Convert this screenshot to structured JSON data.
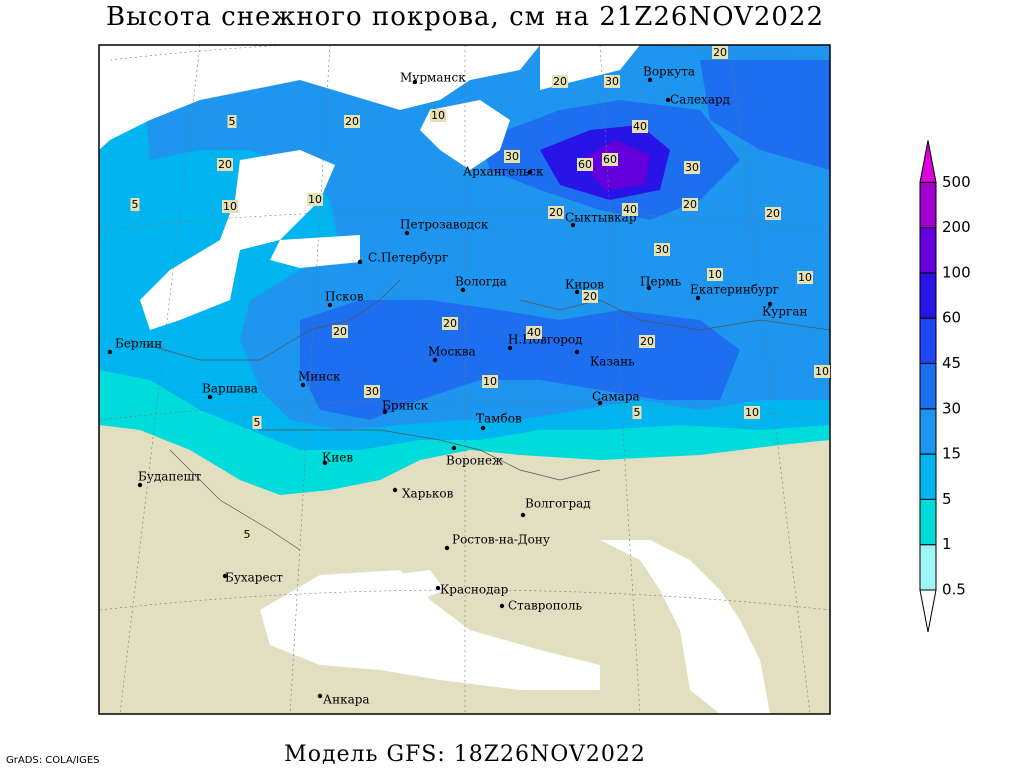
{
  "header": {
    "title": "Высота снежного покрова, см на 21Z26NOV2022"
  },
  "footer": {
    "model": "Модель GFS: 18Z26NOV2022",
    "credit": "GrADS: COLA/IGES"
  },
  "map": {
    "cities": [
      "Мурманск",
      "Воркута",
      "Салехард",
      "Архангельск",
      "Петрозаводск",
      "С.Петербург",
      "Сыктывкар",
      "Вологда",
      "Киров",
      "Пермь",
      "Екатеринбург",
      "Курган",
      "Псков",
      "Н.Новгород",
      "Казань",
      "Москва",
      "Минск",
      "Варшава",
      "Берлин",
      "Брянск",
      "Тамбов",
      "Самара",
      "Воронеж",
      "Киев",
      "Будапешт",
      "Харьков",
      "Волгоград",
      "Ростов-на-Дону",
      "Бухарест",
      "Краснодар",
      "Ставрополь",
      "Анкара"
    ],
    "contour_labels": [
      "20",
      "10",
      "5",
      "20",
      "10",
      "5",
      "10",
      "20",
      "30",
      "40",
      "60",
      "60",
      "40",
      "30",
      "30",
      "20",
      "20",
      "30",
      "20",
      "20",
      "10",
      "10",
      "20",
      "30",
      "10",
      "5",
      "5",
      "5",
      "10",
      "10",
      "20",
      "20",
      "40",
      "20"
    ]
  },
  "colorbar": {
    "levels": [
      0.5,
      1,
      5,
      15,
      30,
      45,
      60,
      100,
      200,
      500
    ],
    "colors": [
      "#ffffff",
      "#a0f5f5",
      "#00dcdc",
      "#00b4f0",
      "#1e96f0",
      "#1e6ef0",
      "#1e46f5",
      "#2814e6",
      "#6400dc",
      "#a000d2",
      "#dc00dc"
    ]
  }
}
